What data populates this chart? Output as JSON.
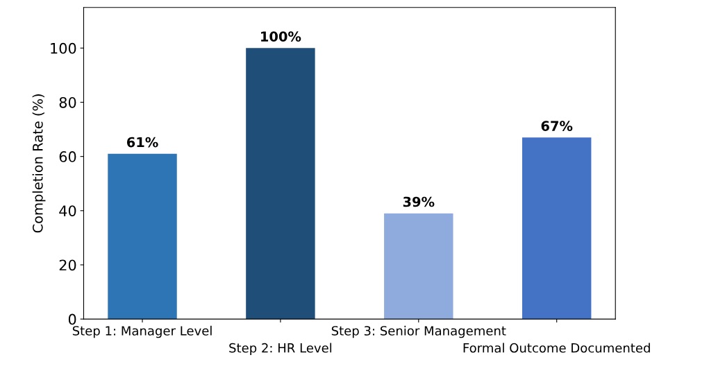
{
  "chart_data": {
    "type": "bar",
    "ylabel": "Completion Rate (%)",
    "categories": [
      "Step 1: Manager Level",
      "Step 2: HR Level",
      "Step 3: Senior Management",
      "Formal Outcome Documented"
    ],
    "values": [
      61,
      100,
      39,
      67
    ],
    "colors": [
      "#2e75b6",
      "#1f4e79",
      "#8faadc",
      "#4472c4"
    ],
    "value_labels": [
      "61%",
      "100%",
      "39%",
      "67%"
    ],
    "ylim": [
      0,
      115
    ],
    "yticks": [
      0,
      20,
      40,
      60,
      80,
      100
    ],
    "grid": false
  }
}
